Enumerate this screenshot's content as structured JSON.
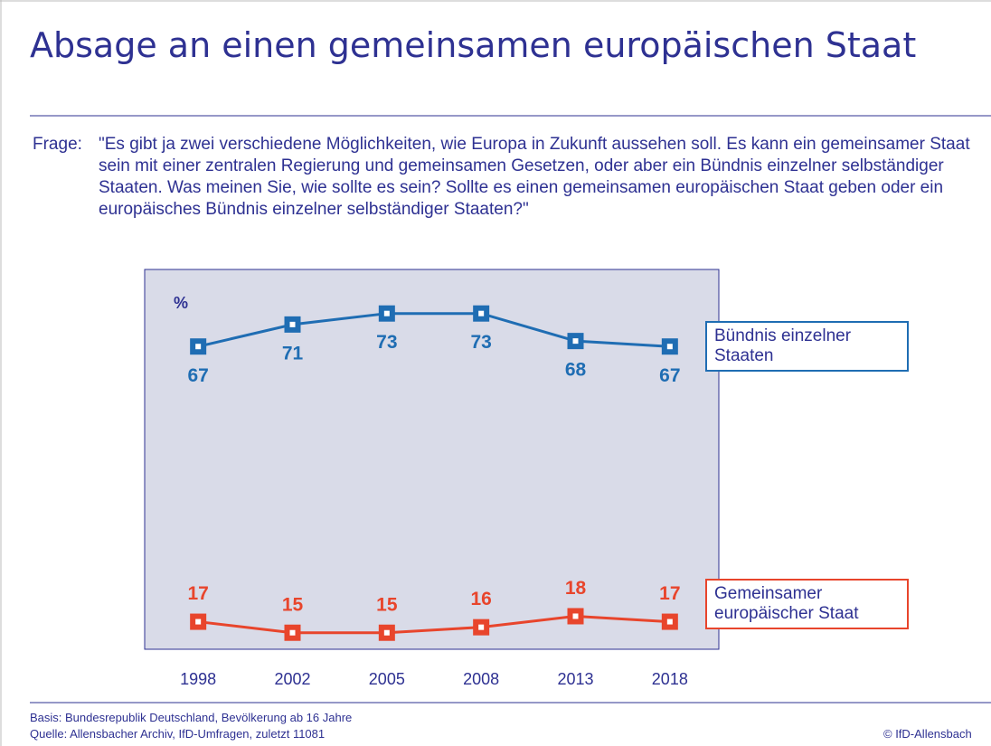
{
  "chart_data": {
    "type": "line",
    "title": "Absage an einen gemeinsamen europäischen Staat",
    "question_label": "Frage:",
    "question": "\"Es gibt ja zwei verschiedene Möglichkeiten, wie Europa in Zukunft aussehen soll. Es kann ein gemeinsamer Staat sein mit einer zentralen Regierung und gemeinsamen Gesetzen, oder aber ein Bündnis einzelner selbständiger Staaten. Was meinen Sie, wie sollte es sein? Sollte es einen gemeinsamen europäischen Staat geben oder ein europäisches Bündnis einzelner selbständiger Staaten?\"",
    "y_label": "%",
    "categories": [
      "1998",
      "2002",
      "2005",
      "2008",
      "2013",
      "2018"
    ],
    "series": [
      {
        "name": "Bündnis einzelner Staaten",
        "color": "#1f6db3",
        "values": [
          67,
          71,
          73,
          73,
          68,
          67
        ]
      },
      {
        "name": "Gemeinsamer europäischer Staat",
        "color": "#e8452c",
        "values": [
          17,
          15,
          15,
          16,
          18,
          17
        ]
      }
    ],
    "ylim": [
      12,
      81
    ],
    "footnote_basis": "Basis: Bundesrepublik Deutschland, Bevölkerung ab 16 Jahre",
    "footnote_source": "Quelle: Allensbacher Archiv, IfD-Umfragen, zuletzt 11081",
    "copyright": "© IfD-Allensbach"
  }
}
